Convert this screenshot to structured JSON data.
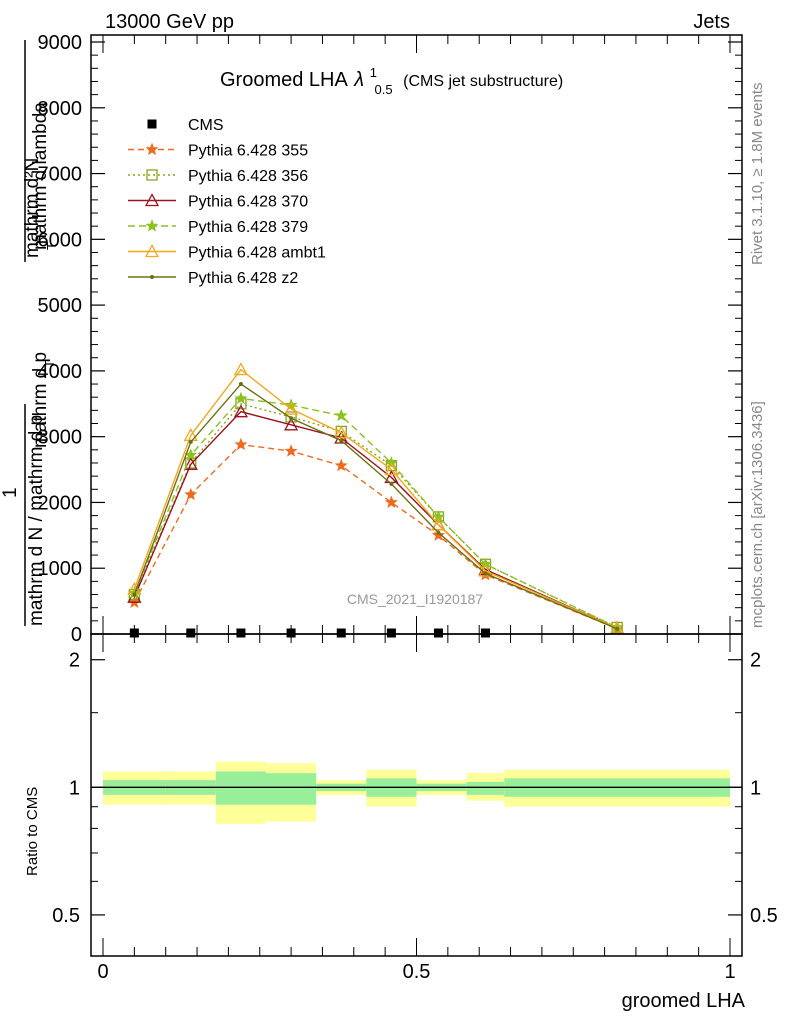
{
  "header": {
    "left": "13000 GeV pp",
    "right": "Jets"
  },
  "side": {
    "rivet": "Rivet 3.1.10, ≥ 1.8M events",
    "mcplots": "mcplots.cern.ch [arXiv:1306.3436]"
  },
  "watermark": "CMS_2021_I1920187",
  "chart_data": [
    {
      "type": "line",
      "title_main": "Groomed LHA",
      "title_lambda": "λ",
      "title_sup": "1",
      "title_sub": "0.5",
      "title_note": "(CMS jet substructure)",
      "ylabel_top": "mathrm d²N",
      "ylabel_mid": "mathrm d p",
      "ylabel_mid2": "mathrm d lambda",
      "ylabel_sub": "T",
      "ylabel_one": "1",
      "ylabel_bottom": "mathrm d N / mathrm d p",
      "ylabel_bottom_sub": "T",
      "ylim": [
        0,
        9000
      ],
      "yticks": [
        {
          "v": 0,
          "label": "0"
        },
        {
          "v": 1000,
          "label": "1000"
        },
        {
          "v": 2000,
          "label": "2000"
        },
        {
          "v": 3000,
          "label": "3000"
        },
        {
          "v": 4000,
          "label": "4000"
        },
        {
          "v": 5000,
          "label": "5000"
        },
        {
          "v": 6000,
          "label": "6000"
        },
        {
          "v": 7000,
          "label": "7000"
        },
        {
          "v": 8000,
          "label": "8000"
        },
        {
          "v": 9000,
          "label": "9000"
        }
      ],
      "xlim": [
        0,
        1
      ],
      "x": [
        0.05,
        0.14,
        0.22,
        0.3,
        0.38,
        0.46,
        0.535,
        0.61,
        0.82
      ],
      "series": [
        {
          "name": "CMS",
          "marker": "square",
          "color": "#000000",
          "dash": "",
          "values": [
            0,
            0,
            0,
            0,
            0,
            0,
            0,
            0,
            null
          ]
        },
        {
          "name": "Pythia 6.428 355",
          "marker": "star",
          "color": "#ee6a1f",
          "dash": "6,4",
          "values": [
            480,
            2120,
            2880,
            2780,
            2560,
            2000,
            1500,
            900,
            80
          ]
        },
        {
          "name": "Pythia 6.428 356",
          "marker": "opensquare",
          "color": "#86a51f",
          "dash": "2,3",
          "values": [
            600,
            2600,
            3500,
            3300,
            3080,
            2560,
            1780,
            1060,
            100
          ]
        },
        {
          "name": "Pythia 6.428 370",
          "marker": "opentriangle",
          "color": "#9b1220",
          "dash": "",
          "values": [
            560,
            2580,
            3380,
            3180,
            2980,
            2380,
            1660,
            980,
            90
          ]
        },
        {
          "name": "Pythia 6.428 379",
          "marker": "star",
          "color": "#8cc21f",
          "dash": "7,4",
          "values": [
            620,
            2720,
            3580,
            3480,
            3320,
            2600,
            1780,
            1060,
            100
          ]
        },
        {
          "name": "Pythia 6.428 ambt1",
          "marker": "opentriangle",
          "color": "#f0a81e",
          "dash": "",
          "values": [
            680,
            3020,
            4020,
            3420,
            3060,
            2500,
            1660,
            960,
            90
          ]
        },
        {
          "name": "Pythia 6.428 z2",
          "marker": "dot",
          "color": "#6b7014",
          "dash": "",
          "values": [
            600,
            2920,
            3800,
            3280,
            2940,
            2280,
            1540,
            920,
            80
          ]
        }
      ]
    },
    {
      "type": "area",
      "ylabel": "Ratio to CMS",
      "xlabel": "groomed LHA",
      "ylim": [
        0.4,
        2.3
      ],
      "yticks": [
        {
          "v": 0.5,
          "label": "0.5"
        },
        {
          "v": 1,
          "label": "1"
        },
        {
          "v": 2,
          "label": "2"
        }
      ],
      "xticks": [
        {
          "v": 0,
          "label": "0"
        },
        {
          "v": 0.5,
          "label": "0.5"
        },
        {
          "v": 1,
          "label": "1"
        }
      ],
      "bin_edges": [
        0,
        0.1,
        0.18,
        0.26,
        0.34,
        0.42,
        0.5,
        0.58,
        0.64,
        1.0
      ],
      "stat_band": [
        [
          0.96,
          1.04
        ],
        [
          0.96,
          1.04
        ],
        [
          0.91,
          1.09
        ],
        [
          0.91,
          1.08
        ],
        [
          0.98,
          1.02
        ],
        [
          0.95,
          1.05
        ],
        [
          0.98,
          1.02
        ],
        [
          0.96,
          1.03
        ],
        [
          0.95,
          1.05
        ]
      ],
      "total_band": [
        [
          0.91,
          1.09
        ],
        [
          0.91,
          1.09
        ],
        [
          0.82,
          1.15
        ],
        [
          0.83,
          1.14
        ],
        [
          0.96,
          1.04
        ],
        [
          0.9,
          1.1
        ],
        [
          0.96,
          1.04
        ],
        [
          0.93,
          1.08
        ],
        [
          0.9,
          1.1
        ]
      ],
      "stat_color": "#99ee99",
      "total_color": "#ffff99"
    }
  ]
}
